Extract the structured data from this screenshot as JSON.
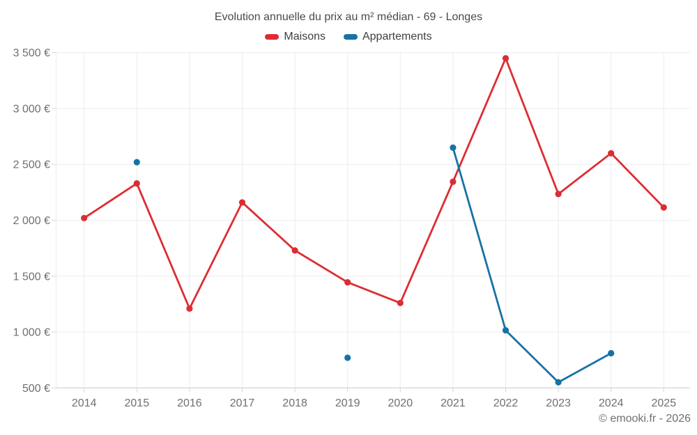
{
  "title": "Evolution annuelle du prix au m² médian - 69 - Longes",
  "footer": "© emooki.fr - 2026",
  "legend": [
    {
      "label": "Maisons",
      "color": "#dd2c33"
    },
    {
      "label": "Appartements",
      "color": "#1672a5"
    }
  ],
  "chart_data": {
    "type": "line",
    "title": "Evolution annuelle du prix au m² médian - 69 - Longes",
    "xlabel": "",
    "ylabel": "",
    "categories": [
      2014,
      2015,
      2016,
      2017,
      2018,
      2019,
      2020,
      2021,
      2022,
      2023,
      2024,
      2025
    ],
    "series": [
      {
        "name": "Maisons",
        "color": "#dd2c33",
        "values": [
          2020,
          2330,
          1210,
          2160,
          1730,
          1445,
          1260,
          2345,
          3450,
          2235,
          2600,
          2115
        ]
      },
      {
        "name": "Appartements",
        "color": "#1672a5",
        "values": [
          null,
          2520,
          null,
          null,
          null,
          770,
          null,
          2650,
          1015,
          550,
          810,
          null
        ]
      }
    ],
    "ylim": [
      500,
      3500
    ],
    "ytick_step": 500,
    "ytick_labels": [
      "500 €",
      "1 000 €",
      "1 500 €",
      "2 000 €",
      "2 500 €",
      "3 000 €",
      "3 500 €"
    ],
    "grid": true,
    "legend_position": "top"
  }
}
